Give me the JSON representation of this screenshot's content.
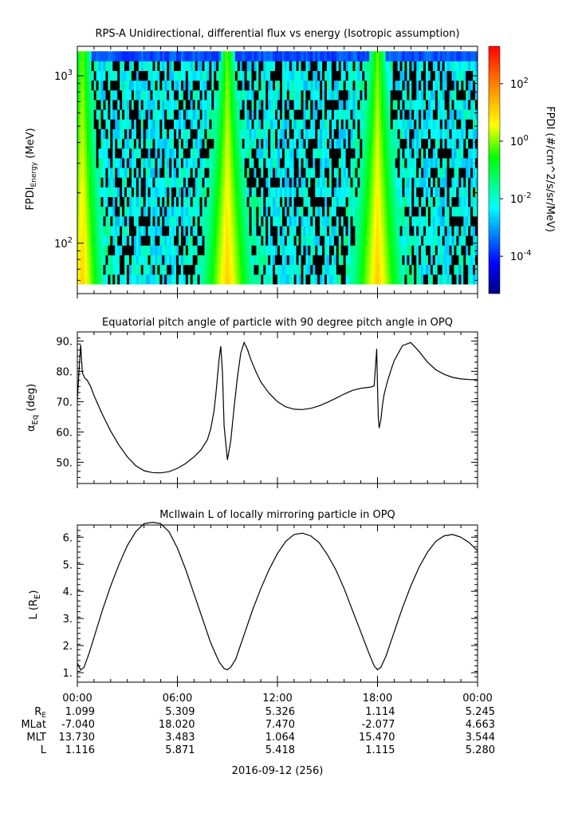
{
  "colors": {
    "axis": "#000000",
    "trace": "#000000",
    "background": "#ffffff"
  },
  "chart_data": [
    {
      "type": "heatmap",
      "title": "RPS-A Unidirectional, differential flux vs energy (Isotropic assumption)",
      "ylabel_main": "FPDI",
      "ylabel_sub": "Energy",
      "ylabel_unit": "(MeV)",
      "y_scale": "log",
      "ylim": [
        50,
        1500
      ],
      "y_ticks": [
        {
          "base": "10",
          "exp": "3",
          "value": 1000
        },
        {
          "base": "10",
          "exp": "2",
          "value": 100
        }
      ],
      "energy_top": 1400,
      "energy_bottom": 57,
      "energy_channels": 24,
      "hot_bands": [
        {
          "start_hour": 0.0,
          "center_hour": 0.3,
          "width_top": 0.5,
          "width_bottom": 1.3
        },
        {
          "start_hour": 8.5,
          "center_hour": 9.0,
          "width_top": 0.4,
          "width_bottom": 1.6
        },
        {
          "start_hour": 17.5,
          "center_hour": 18.0,
          "width_top": 0.5,
          "width_bottom": 1.6
        }
      ],
      "colorbar": {
        "label": "FPDI (#/cm^2/s/sr/MeV)",
        "scale": "log",
        "range_exp": [
          -5.3,
          3.3
        ],
        "ticks": [
          {
            "base": "10",
            "exp": "2",
            "value": 2
          },
          {
            "base": "10",
            "exp": "0",
            "value": 0
          },
          {
            "base": "10",
            "exp": "-2",
            "value": -2
          },
          {
            "base": "10",
            "exp": "-4",
            "value": -4
          }
        ]
      }
    },
    {
      "type": "line",
      "title": "Equatorial pitch angle of particle with 90 degree pitch angle in OPQ",
      "ylabel_main": "α",
      "ylabel_sub": "Eq",
      "ylabel_unit": "(deg)",
      "ylim": [
        43,
        93
      ],
      "y_ticks": [
        {
          "label": "90.",
          "value": 90
        },
        {
          "label": "80.",
          "value": 80
        },
        {
          "label": "70.",
          "value": 70
        },
        {
          "label": "60.",
          "value": 60
        },
        {
          "label": "50.",
          "value": 50
        }
      ],
      "x_hours": [
        0,
        0.1,
        0.2,
        0.3,
        0.45,
        0.6,
        0.8,
        1.0,
        1.5,
        2.0,
        2.5,
        3.0,
        3.5,
        4.0,
        4.5,
        5.0,
        5.5,
        6.0,
        6.5,
        7.0,
        7.4,
        7.8,
        8.0,
        8.2,
        8.3,
        8.5,
        8.6,
        8.7,
        8.8,
        9.0,
        9.2,
        9.4,
        9.6,
        9.8,
        10.0,
        10.2,
        10.4,
        10.7,
        11.0,
        11.5,
        12.0,
        12.5,
        13.0,
        13.5,
        14.0,
        14.5,
        15.0,
        15.5,
        16.0,
        16.5,
        17.0,
        17.3,
        17.6,
        17.8,
        17.9,
        17.95,
        18.0,
        18.05,
        18.1,
        18.2,
        18.3,
        18.4,
        18.6,
        18.8,
        19.0,
        19.5,
        20.0,
        20.5,
        21.0,
        21.5,
        22.0,
        22.5,
        23.0,
        23.5,
        24.0
      ],
      "y_values": [
        70.5,
        80.0,
        88.8,
        79.5,
        77.8,
        77.0,
        75.0,
        72.0,
        65.8,
        60.3,
        55.6,
        51.8,
        48.9,
        47.2,
        46.6,
        46.5,
        46.9,
        48.0,
        49.6,
        51.8,
        54.0,
        57.4,
        61.0,
        67.0,
        72.0,
        84.0,
        88.3,
        80.0,
        62.0,
        50.8,
        57.0,
        68.0,
        78.0,
        86.0,
        89.5,
        87.2,
        84.0,
        80.0,
        76.5,
        72.8,
        70.0,
        68.3,
        67.5,
        67.4,
        67.8,
        68.6,
        69.8,
        71.1,
        72.5,
        73.7,
        74.4,
        74.6,
        74.8,
        75.2,
        83.0,
        87.4,
        75.0,
        65.0,
        61.3,
        64.0,
        69.0,
        72.5,
        76.8,
        80.2,
        83.5,
        88.5,
        89.5,
        86.5,
        83.0,
        80.5,
        79.0,
        78.0,
        77.5,
        77.3,
        77.2
      ]
    },
    {
      "type": "line",
      "title": "McIlwain L of locally mirroring particle in OPQ",
      "ylabel_main": "L (R",
      "ylabel_sub": "E",
      "ylabel_unit": ")",
      "ylim": [
        0.65,
        6.45
      ],
      "y_ticks": [
        {
          "label": "6.",
          "value": 6
        },
        {
          "label": "5.",
          "value": 5
        },
        {
          "label": "4.",
          "value": 4
        },
        {
          "label": "3.",
          "value": 3
        },
        {
          "label": "2.",
          "value": 2
        },
        {
          "label": "1.",
          "value": 1
        }
      ],
      "x_hours": [
        0,
        0.2,
        0.4,
        0.7,
        1.0,
        1.5,
        2.0,
        2.5,
        3.0,
        3.5,
        4.0,
        4.5,
        5.0,
        5.5,
        6.0,
        6.5,
        7.0,
        7.5,
        8.0,
        8.5,
        8.8,
        9.0,
        9.2,
        9.5,
        10.0,
        10.5,
        11.0,
        11.5,
        12.0,
        12.5,
        13.0,
        13.5,
        14.0,
        14.5,
        15.0,
        15.5,
        16.0,
        16.5,
        17.0,
        17.5,
        17.8,
        18.0,
        18.2,
        18.5,
        19.0,
        19.5,
        20.0,
        20.5,
        21.0,
        21.5,
        22.0,
        22.5,
        23.0,
        23.5,
        24.0
      ],
      "y_values": [
        1.35,
        1.1,
        1.2,
        1.7,
        2.3,
        3.3,
        4.2,
        5.0,
        5.7,
        6.2,
        6.5,
        6.55,
        6.5,
        6.2,
        5.6,
        4.8,
        3.9,
        3.0,
        2.1,
        1.4,
        1.15,
        1.11,
        1.2,
        1.5,
        2.4,
        3.3,
        4.1,
        4.8,
        5.4,
        5.85,
        6.1,
        6.15,
        6.05,
        5.8,
        5.35,
        4.8,
        4.1,
        3.3,
        2.5,
        1.7,
        1.25,
        1.11,
        1.2,
        1.6,
        2.5,
        3.4,
        4.2,
        4.9,
        5.45,
        5.85,
        6.05,
        6.1,
        6.0,
        5.8,
        5.5
      ]
    }
  ],
  "x_axis": {
    "range_hours": [
      0,
      24
    ],
    "tick_labels": [
      {
        "label": "00:00",
        "hour": 0
      },
      {
        "label": "06:00",
        "hour": 6
      },
      {
        "label": "12:00",
        "hour": 12
      },
      {
        "label": "18:00",
        "hour": 18
      },
      {
        "label": "00:00",
        "hour": 24
      }
    ],
    "date_label": "2016-09-12 (256)"
  },
  "ephemeris": {
    "rows": [
      {
        "label_main": "R",
        "label_sub": "E",
        "values": [
          "1.099",
          "5.309",
          "5.326",
          "1.114",
          "5.245"
        ]
      },
      {
        "label_main": "MLat",
        "label_sub": "",
        "values": [
          "-7.040",
          "18.020",
          "7.470",
          "-2.077",
          "4.663"
        ]
      },
      {
        "label_main": "MLT",
        "label_sub": "",
        "values": [
          "13.730",
          "3.483",
          "1.064",
          "15.470",
          "3.544"
        ]
      },
      {
        "label_main": "L",
        "label_sub": "",
        "values": [
          "1.116",
          "5.871",
          "5.418",
          "1.115",
          "5.280"
        ]
      }
    ]
  }
}
